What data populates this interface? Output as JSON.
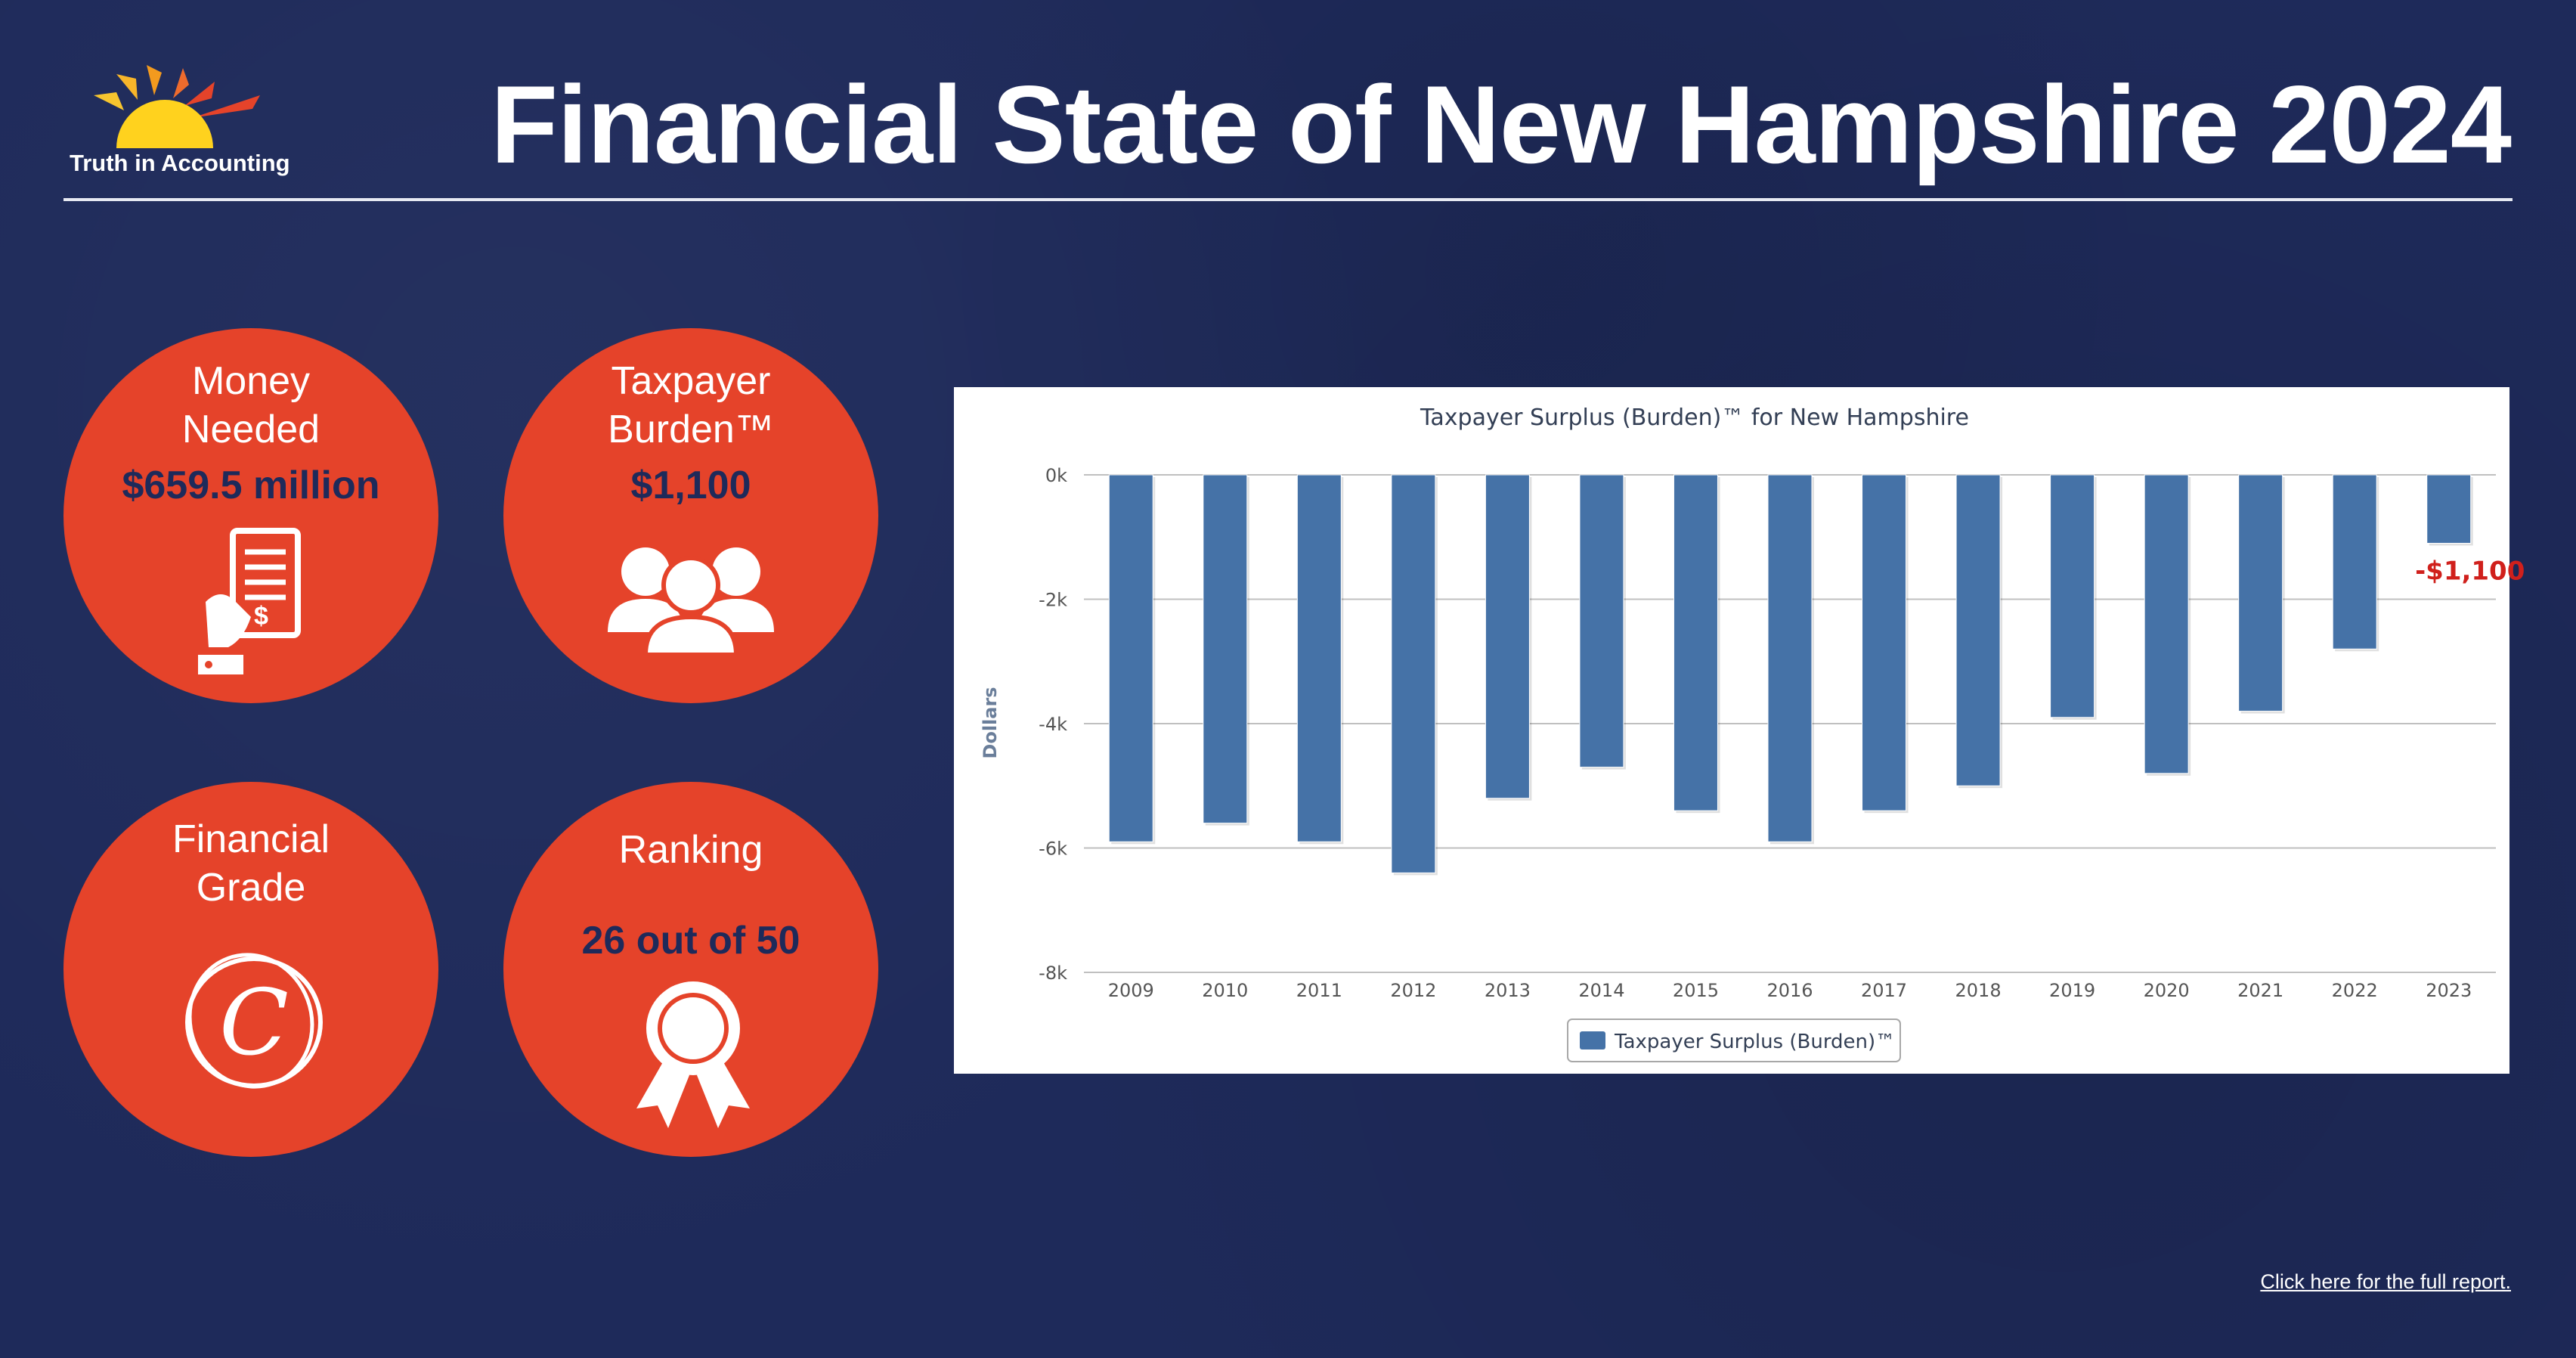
{
  "brand": {
    "logo_text": "Truth in Accounting"
  },
  "header": {
    "title": "Financial State of New Hampshire 2024"
  },
  "stats": {
    "money_needed": {
      "label_line1": "Money",
      "label_line2": "Needed",
      "value": "$659.5 million"
    },
    "taxpayer_burden": {
      "label_line1": "Taxpayer",
      "label_line2": "Burden™",
      "value": "$1,100"
    },
    "financial_grade": {
      "label_line1": "Financial",
      "label_line2": "Grade",
      "grade": "C"
    },
    "ranking": {
      "label": "Ranking",
      "value": "26 out of 50"
    }
  },
  "icons": {
    "money_needed": "receipt-hand-icon",
    "taxpayer_burden": "people-group-icon",
    "financial_grade": "grade-c-icon",
    "ranking": "award-ribbon-icon"
  },
  "colors": {
    "background": "#1e2a5a",
    "circle": "#e5432a",
    "bar": "#4572a7",
    "annotation": "#d0201c"
  },
  "chart_data": {
    "type": "bar",
    "title": "Taxpayer Surplus (Burden)™ for New Hampshire",
    "ylabel": "Dollars",
    "xlabel": "",
    "categories": [
      "2009",
      "2010",
      "2011",
      "2012",
      "2013",
      "2014",
      "2015",
      "2016",
      "2017",
      "2018",
      "2019",
      "2020",
      "2021",
      "2022",
      "2023"
    ],
    "series": [
      {
        "name": "Taxpayer Surplus (Burden)™",
        "values": [
          -5900,
          -5600,
          -5900,
          -6400,
          -5200,
          -4700,
          -5400,
          -5900,
          -5400,
          -5000,
          -3900,
          -4800,
          -3800,
          -2800,
          -1100
        ]
      }
    ],
    "ylim": [
      -8000,
      0
    ],
    "yticks": [
      0,
      -2000,
      -4000,
      -6000,
      -8000
    ],
    "ytick_labels": [
      "0k",
      "-2k",
      "-4k",
      "-6k",
      "-8k"
    ],
    "annotation": {
      "category": "2023",
      "text": "-$1,100"
    },
    "grid": true,
    "legend_position": "bottom-center"
  },
  "footer": {
    "link_text": "Click here for the full report."
  }
}
